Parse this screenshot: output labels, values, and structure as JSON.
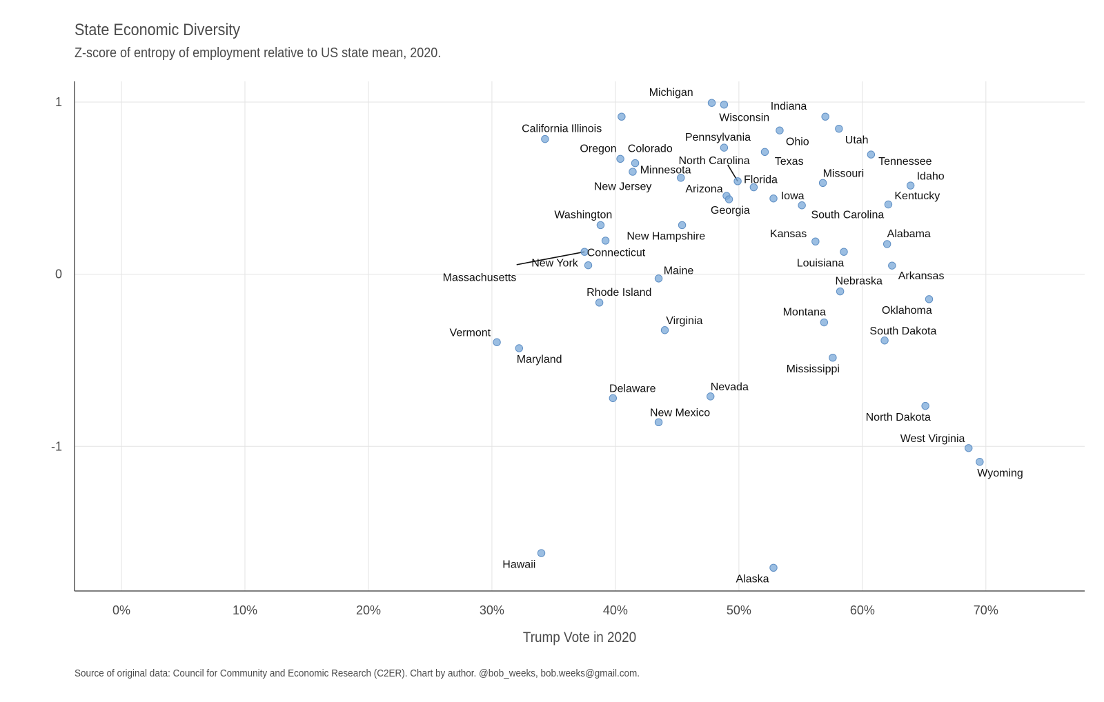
{
  "chart_data": {
    "type": "scatter",
    "title": "State Economic Diversity",
    "subtitle": "Z-score of entropy of employment relative to US state mean, 2020.",
    "xlabel": "Trump Vote in 2020",
    "ylabel": "",
    "caption": "Source of original data: Council for Community and Economic Research (C2ER). Chart by author. @bob_weeks, bob.weeks@gmail.com.",
    "xlim": [
      -3.8,
      78
    ],
    "ylim": [
      -1.84,
      1.12
    ],
    "x_ticks": [
      0,
      10,
      20,
      30,
      40,
      50,
      60,
      70
    ],
    "x_tick_labels": [
      "0%",
      "10%",
      "20%",
      "30%",
      "40%",
      "50%",
      "60%",
      "70%"
    ],
    "y_ticks": [
      1,
      0,
      -1
    ],
    "y_tick_labels": [
      "1",
      "0",
      "-1"
    ],
    "grid": true,
    "point_color": "#7aa8d8",
    "points": [
      {
        "label": "Michigan",
        "x": 47.8,
        "y": 0.995,
        "lx": 46.3,
        "ly": 1.055,
        "anchor": "end"
      },
      {
        "label": "Wisconsin",
        "x": 48.8,
        "y": 0.985,
        "lx": 48.4,
        "ly": 0.91,
        "anchor": "start"
      },
      {
        "label": "Indiana",
        "x": 57.0,
        "y": 0.915,
        "lx": 55.5,
        "ly": 0.975,
        "anchor": "end"
      },
      {
        "label": "Illinois",
        "x": 40.5,
        "y": 0.915,
        "lx": 38.9,
        "ly": 0.845,
        "anchor": "end"
      },
      {
        "label": "Utah",
        "x": 58.1,
        "y": 0.845,
        "lx": 58.6,
        "ly": 0.78,
        "anchor": "start"
      },
      {
        "label": "Ohio",
        "x": 53.3,
        "y": 0.835,
        "lx": 53.8,
        "ly": 0.77,
        "anchor": "start"
      },
      {
        "label": "California",
        "x": 34.3,
        "y": 0.785,
        "lx": 34.3,
        "ly": 0.845,
        "anchor": "middle"
      },
      {
        "label": "Pennsylvania",
        "x": 48.8,
        "y": 0.735,
        "lx": 48.3,
        "ly": 0.795,
        "anchor": "middle"
      },
      {
        "label": "Texas",
        "x": 52.1,
        "y": 0.71,
        "lx": 52.9,
        "ly": 0.655,
        "anchor": "start"
      },
      {
        "label": "Tennessee",
        "x": 60.7,
        "y": 0.695,
        "lx": 61.3,
        "ly": 0.655,
        "anchor": "start"
      },
      {
        "label": "Oregon",
        "x": 40.4,
        "y": 0.67,
        "lx": 40.1,
        "ly": 0.73,
        "anchor": "end"
      },
      {
        "label": "Colorado",
        "x": 41.6,
        "y": 0.645,
        "lx": 41.0,
        "ly": 0.73,
        "anchor": "start"
      },
      {
        "label": "North Carolina",
        "x": 49.9,
        "y": 0.54,
        "lx": 48.0,
        "ly": 0.66,
        "anchor": "middle",
        "line": [
          49.1,
          0.635
        ]
      },
      {
        "label": "Minnesota",
        "x": 41.4,
        "y": 0.595,
        "lx": 42.0,
        "ly": 0.605,
        "anchor": "start"
      },
      {
        "label": "New Jersey",
        "x": 45.3,
        "y": 0.56,
        "lx": 40.6,
        "ly": 0.51,
        "anchor": "middle"
      },
      {
        "label": "Florida",
        "x": 51.2,
        "y": 0.505,
        "lx": 50.4,
        "ly": 0.55,
        "anchor": "start"
      },
      {
        "label": "Missouri",
        "x": 56.8,
        "y": 0.53,
        "lx": 56.8,
        "ly": 0.585,
        "anchor": "start"
      },
      {
        "label": "Idaho",
        "x": 63.9,
        "y": 0.515,
        "lx": 64.4,
        "ly": 0.57,
        "anchor": "start"
      },
      {
        "label": "Arizona",
        "x": 49.0,
        "y": 0.455,
        "lx": 48.7,
        "ly": 0.495,
        "anchor": "end"
      },
      {
        "label": "Georgia",
        "x": 49.2,
        "y": 0.435,
        "lx": 49.3,
        "ly": 0.37,
        "anchor": "middle"
      },
      {
        "label": "Iowa",
        "x": 52.8,
        "y": 0.44,
        "lx": 53.4,
        "ly": 0.455,
        "anchor": "start"
      },
      {
        "label": "Kentucky",
        "x": 62.1,
        "y": 0.405,
        "lx": 62.6,
        "ly": 0.455,
        "anchor": "start"
      },
      {
        "label": "South Carolina",
        "x": 55.1,
        "y": 0.4,
        "lx": 58.8,
        "ly": 0.345,
        "anchor": "middle"
      },
      {
        "label": "Washington",
        "x": 38.8,
        "y": 0.285,
        "lx": 37.4,
        "ly": 0.345,
        "anchor": "middle"
      },
      {
        "label": "New Hampshire",
        "x": 45.4,
        "y": 0.285,
        "lx": 44.1,
        "ly": 0.22,
        "anchor": "middle"
      },
      {
        "label": "Kansas",
        "x": 56.2,
        "y": 0.19,
        "lx": 55.5,
        "ly": 0.235,
        "anchor": "end"
      },
      {
        "label": "Alabama",
        "x": 62.0,
        "y": 0.175,
        "lx": 62.0,
        "ly": 0.235,
        "anchor": "start"
      },
      {
        "label": "Connecticut",
        "x": 39.2,
        "y": 0.195,
        "lx": 37.7,
        "ly": 0.125,
        "anchor": "start"
      },
      {
        "label": "Louisiana",
        "x": 58.5,
        "y": 0.13,
        "lx": 56.6,
        "ly": 0.065,
        "anchor": "middle"
      },
      {
        "label": "Massachusetts",
        "x": 37.5,
        "y": 0.13,
        "lx": 29.0,
        "ly": -0.02,
        "anchor": "middle",
        "line": [
          32.0,
          0.055
        ]
      },
      {
        "label": "New York",
        "x": 37.8,
        "y": 0.052,
        "lx": 33.2,
        "ly": 0.065,
        "anchor": "start"
      },
      {
        "label": "Arkansas",
        "x": 62.4,
        "y": 0.05,
        "lx": 62.9,
        "ly": -0.01,
        "anchor": "start"
      },
      {
        "label": "Maine",
        "x": 43.5,
        "y": -0.025,
        "lx": 43.9,
        "ly": 0.02,
        "anchor": "start"
      },
      {
        "label": "Nebraska",
        "x": 58.2,
        "y": -0.1,
        "lx": 57.8,
        "ly": -0.04,
        "anchor": "start"
      },
      {
        "label": "Oklahoma",
        "x": 65.4,
        "y": -0.145,
        "lx": 63.6,
        "ly": -0.21,
        "anchor": "middle"
      },
      {
        "label": "Rhode Island",
        "x": 38.7,
        "y": -0.165,
        "lx": 40.3,
        "ly": -0.105,
        "anchor": "middle"
      },
      {
        "label": "Montana",
        "x": 56.9,
        "y": -0.28,
        "lx": 55.3,
        "ly": -0.22,
        "anchor": "middle"
      },
      {
        "label": "Virginia",
        "x": 44.0,
        "y": -0.325,
        "lx": 44.1,
        "ly": -0.27,
        "anchor": "start"
      },
      {
        "label": "South Dakota",
        "x": 61.8,
        "y": -0.385,
        "lx": 63.3,
        "ly": -0.33,
        "anchor": "middle"
      },
      {
        "label": "Vermont",
        "x": 30.4,
        "y": -0.395,
        "lx": 29.9,
        "ly": -0.34,
        "anchor": "end"
      },
      {
        "label": "Maryland",
        "x": 32.2,
        "y": -0.43,
        "lx": 32.0,
        "ly": -0.495,
        "anchor": "start"
      },
      {
        "label": "Mississippi",
        "x": 57.6,
        "y": -0.485,
        "lx": 56.0,
        "ly": -0.55,
        "anchor": "middle"
      },
      {
        "label": "Delaware",
        "x": 39.8,
        "y": -0.72,
        "lx": 39.5,
        "ly": -0.665,
        "anchor": "start"
      },
      {
        "label": "Nevada",
        "x": 47.7,
        "y": -0.71,
        "lx": 47.7,
        "ly": -0.655,
        "anchor": "start"
      },
      {
        "label": "North Dakota",
        "x": 65.1,
        "y": -0.765,
        "lx": 62.9,
        "ly": -0.83,
        "anchor": "middle"
      },
      {
        "label": "New Mexico",
        "x": 43.5,
        "y": -0.86,
        "lx": 42.8,
        "ly": -0.805,
        "anchor": "start"
      },
      {
        "label": "West Virginia",
        "x": 68.6,
        "y": -1.01,
        "lx": 68.3,
        "ly": -0.955,
        "anchor": "end"
      },
      {
        "label": "Wyoming",
        "x": 69.5,
        "y": -1.09,
        "lx": 69.3,
        "ly": -1.155,
        "anchor": "start"
      },
      {
        "label": "Hawaii",
        "x": 34.0,
        "y": -1.62,
        "lx": 32.2,
        "ly": -1.685,
        "anchor": "middle"
      },
      {
        "label": "Alaska",
        "x": 52.8,
        "y": -1.705,
        "lx": 51.1,
        "ly": -1.77,
        "anchor": "middle"
      }
    ]
  }
}
